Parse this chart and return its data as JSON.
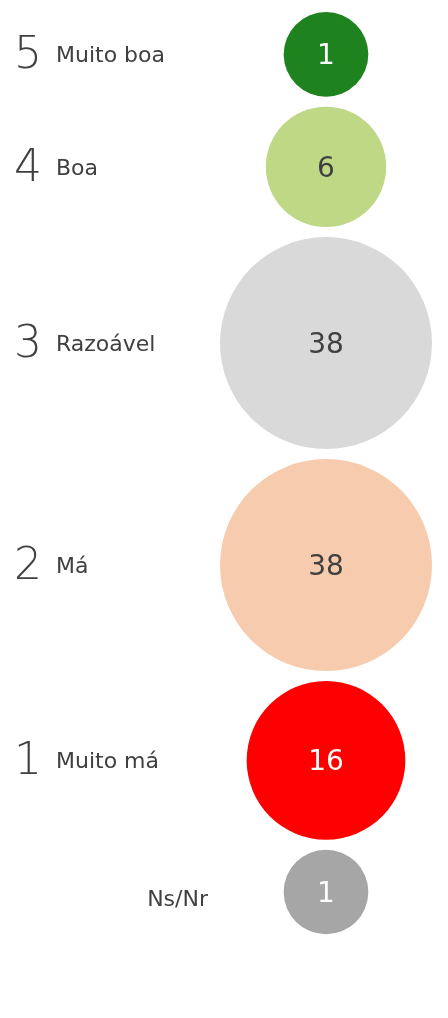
{
  "chart_data": {
    "type": "other",
    "categories": [
      "5 Muito boa",
      "4 Boa",
      "3 Razoável",
      "2 Má",
      "1 Muito má",
      "Ns/Nr"
    ],
    "values": [
      1,
      6,
      38,
      38,
      16,
      1
    ],
    "colors": [
      "#1e821e",
      "#bfd886",
      "#d9d9d9",
      "#f7cbad",
      "#ff0000",
      "#a6a6a6"
    ],
    "data_labels": true
  }
}
